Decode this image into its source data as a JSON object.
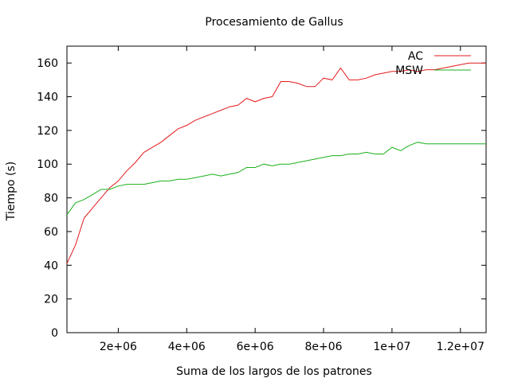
{
  "chart_data": {
    "type": "line",
    "title": "Procesamiento de Gallus",
    "xlabel": "Suma de los largos de los patrones",
    "ylabel": "Tiempo (s)",
    "xlim": [
      500000,
      12750000
    ],
    "ylim": [
      0,
      170
    ],
    "xticks": [
      {
        "value": 2000000,
        "label": "2e+06"
      },
      {
        "value": 4000000,
        "label": "4e+06"
      },
      {
        "value": 6000000,
        "label": "6e+06"
      },
      {
        "value": 8000000,
        "label": "8e+06"
      },
      {
        "value": 10000000,
        "label": "1e+07"
      },
      {
        "value": 12000000,
        "label": "1.2e+07"
      }
    ],
    "yticks": [
      {
        "value": 0,
        "label": "0"
      },
      {
        "value": 20,
        "label": "20"
      },
      {
        "value": 40,
        "label": "40"
      },
      {
        "value": 60,
        "label": "60"
      },
      {
        "value": 80,
        "label": "80"
      },
      {
        "value": 100,
        "label": "100"
      },
      {
        "value": 120,
        "label": "120"
      },
      {
        "value": 140,
        "label": "140"
      },
      {
        "value": 160,
        "label": "160"
      }
    ],
    "grid": false,
    "legend_position": "top-right",
    "x": [
      500000,
      750000,
      1000000,
      1250000,
      1500000,
      1750000,
      2000000,
      2250000,
      2500000,
      2750000,
      3000000,
      3250000,
      3500000,
      3750000,
      4000000,
      4250000,
      4500000,
      4750000,
      5000000,
      5250000,
      5500000,
      5750000,
      6000000,
      6250000,
      6500000,
      6750000,
      7000000,
      7250000,
      7500000,
      7750000,
      8000000,
      8250000,
      8500000,
      8750000,
      9000000,
      9250000,
      9500000,
      9750000,
      10000000,
      10250000,
      10500000,
      10750000,
      11000000,
      11250000,
      11500000,
      11750000,
      12000000,
      12250000,
      12500000,
      12750000
    ],
    "series": [
      {
        "name": "AC",
        "color": "#e41a1c",
        "values": [
          41,
          52,
          68,
          74,
          80,
          86,
          90,
          96,
          101,
          107,
          110,
          113,
          117,
          121,
          123,
          126,
          128,
          130,
          132,
          134,
          135,
          139,
          137,
          139,
          140,
          149,
          149,
          148,
          146,
          146,
          151,
          150,
          157,
          150,
          150,
          151,
          153,
          154,
          155,
          155,
          156,
          155,
          156,
          156,
          157,
          158,
          159,
          160,
          160,
          160
        ]
      },
      {
        "name": "MSW",
        "color": "#1ab01a",
        "values": [
          70,
          77,
          79,
          82,
          85,
          85,
          87,
          88,
          88,
          88,
          89,
          90,
          90,
          91,
          91,
          92,
          93,
          94,
          93,
          94,
          95,
          98,
          98,
          100,
          99,
          100,
          100,
          101,
          102,
          103,
          104,
          105,
          105,
          106,
          106,
          107,
          106,
          106,
          110,
          108,
          111,
          113,
          112,
          112,
          112,
          112,
          112,
          112,
          112,
          112
        ]
      }
    ]
  }
}
